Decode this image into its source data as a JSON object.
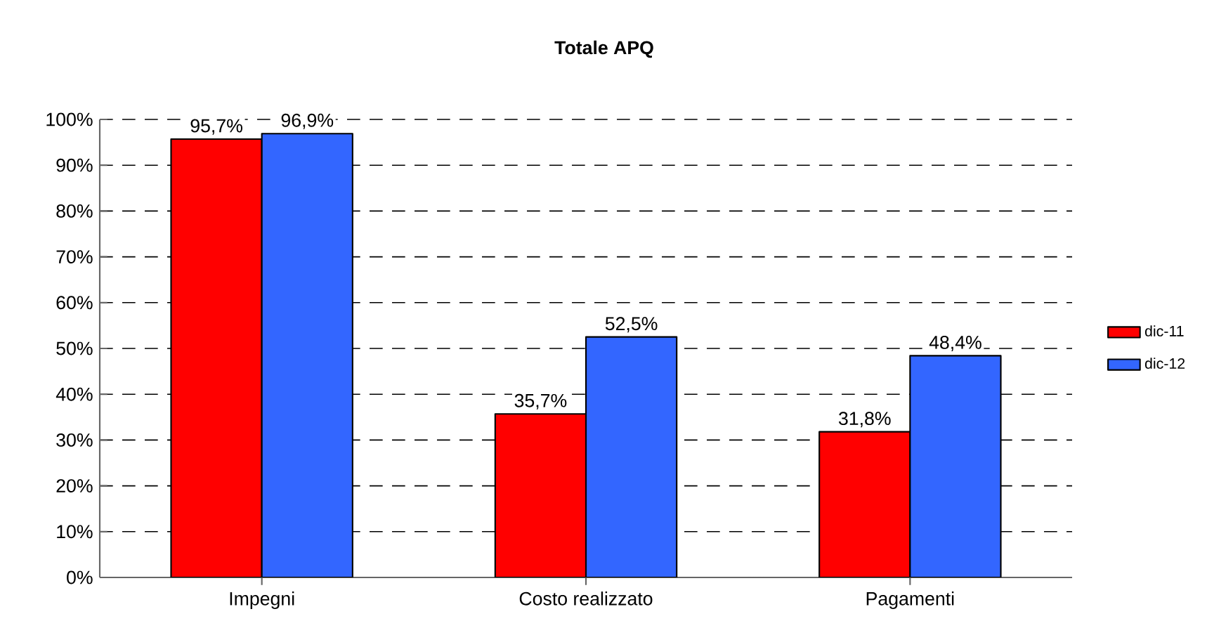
{
  "chart_data": {
    "type": "bar",
    "title": "Totale APQ",
    "categories": [
      "Impegni",
      "Costo realizzato",
      "Pagamenti"
    ],
    "series": [
      {
        "name": "dic-11",
        "color": "#ff0000",
        "values": [
          95.7,
          35.7,
          31.8
        ],
        "value_labels": [
          "95,7%",
          "35,7%",
          "31,8%"
        ]
      },
      {
        "name": "dic-12",
        "color": "#3366ff",
        "values": [
          96.9,
          52.5,
          48.4
        ],
        "value_labels": [
          "96,9%",
          "52,5%",
          "48,4%"
        ]
      }
    ],
    "ylim": [
      0,
      100
    ],
    "yticks": [
      {
        "value": 0,
        "label": "0%"
      },
      {
        "value": 10,
        "label": "10%"
      },
      {
        "value": 20,
        "label": "20%"
      },
      {
        "value": 30,
        "label": "30%"
      },
      {
        "value": 40,
        "label": "40%"
      },
      {
        "value": 50,
        "label": "50%"
      },
      {
        "value": 60,
        "label": "60%"
      },
      {
        "value": 70,
        "label": "70%"
      },
      {
        "value": 80,
        "label": "80%"
      },
      {
        "value": 90,
        "label": "90%"
      },
      {
        "value": 100,
        "label": "100%"
      }
    ],
    "grid": "y",
    "legend": "right"
  }
}
